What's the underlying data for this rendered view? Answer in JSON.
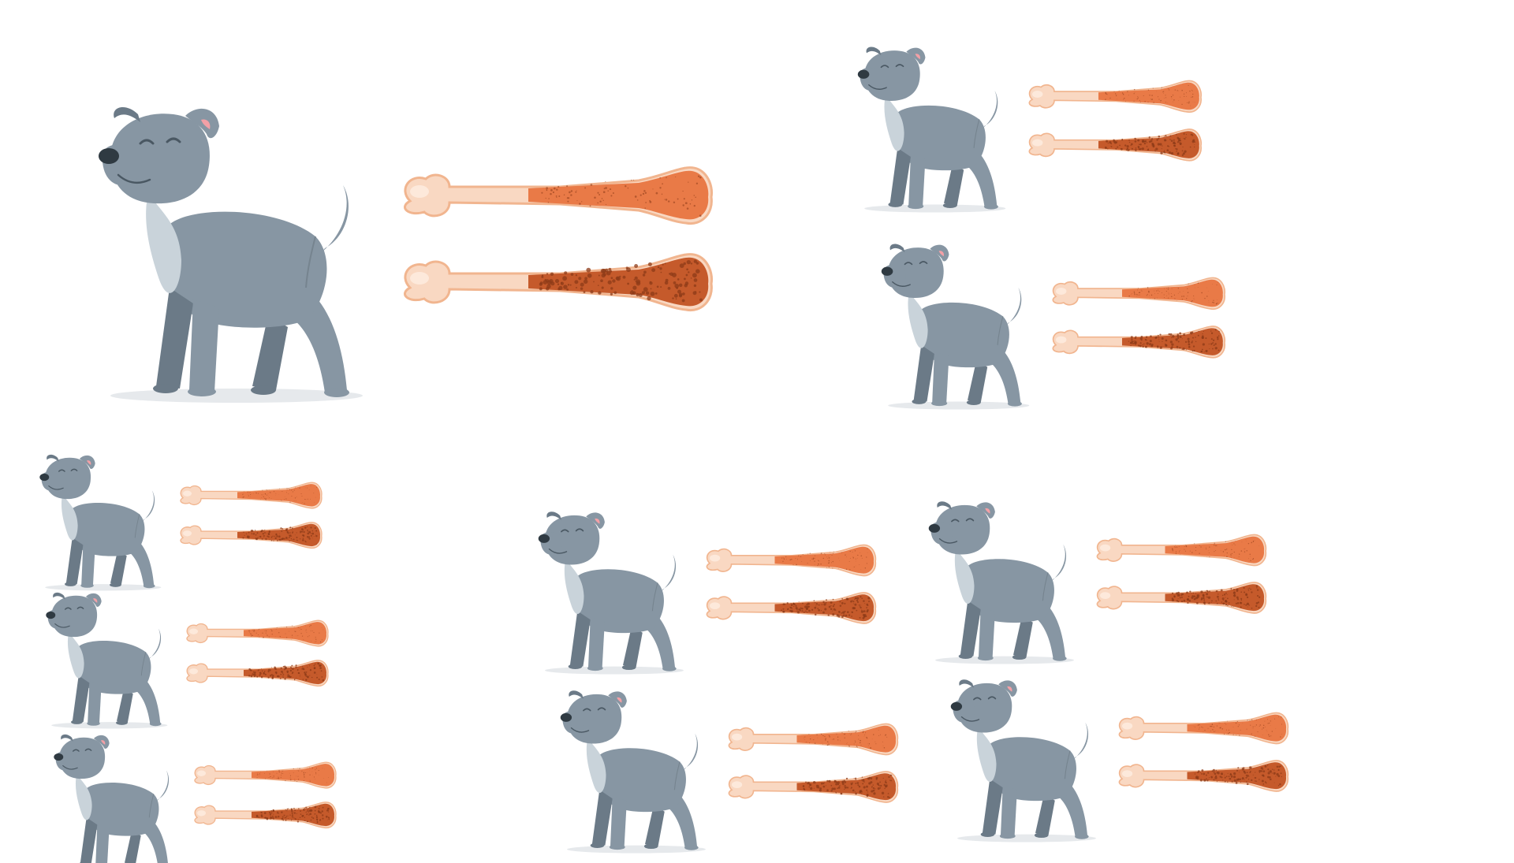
{
  "colors": {
    "background": "#ffffff",
    "dog_body": "#8796a3",
    "dog_dark": "#6b7a87",
    "dog_chest": "#c9d3da",
    "dog_nose": "#2f3a42",
    "dog_ear_inner": "#f3a0a6",
    "dog_shadow": "#e6e9ec",
    "bone_light": "#f9d8c2",
    "bone_outline": "#f1b58f",
    "marrow_healthy": "#e97a47",
    "marrow_osteoporotic": "#c55a2b",
    "pore_dark": "#8c3b18"
  },
  "icons": {
    "dog": "standing-dog-icon",
    "bone_healthy": "healthy-bone-icon",
    "bone_porous": "porous-bone-icon"
  },
  "groups": [
    {
      "id": "pair-large"
    },
    {
      "id": "pair-top-right-1"
    },
    {
      "id": "pair-top-right-2"
    },
    {
      "id": "pair-left-column-1"
    },
    {
      "id": "pair-left-column-2"
    },
    {
      "id": "pair-left-column-3"
    },
    {
      "id": "pair-middle-1"
    },
    {
      "id": "pair-middle-2"
    },
    {
      "id": "pair-right-1"
    },
    {
      "id": "pair-right-2"
    }
  ]
}
